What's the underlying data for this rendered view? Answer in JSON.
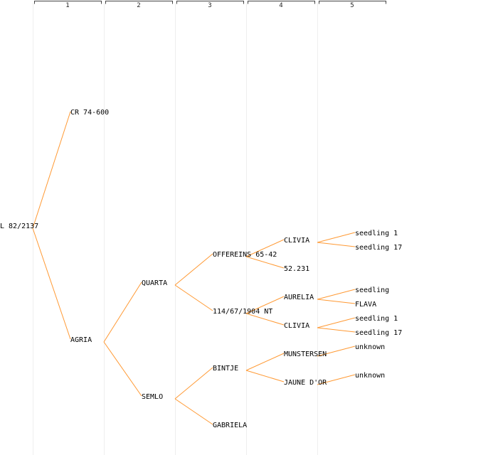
{
  "generations": [
    "1",
    "2",
    "3",
    "4",
    "5"
  ],
  "colors": {
    "edge": "#ff9933",
    "column": "#eeeeee",
    "bracket": "#444444",
    "text": "#000000"
  },
  "root": {
    "name": "L 82/2137",
    "children": [
      {
        "name": "CR 74-600",
        "children": []
      },
      {
        "name": "AGRIA",
        "children": [
          {
            "name": "QUARTA",
            "children": [
              {
                "name": "OFFEREINS 65-42",
                "children": [
                  {
                    "name": "CLIVIA",
                    "children": [
                      {
                        "name": "seedling 1",
                        "children": []
                      },
                      {
                        "name": "seedling 17",
                        "children": []
                      }
                    ]
                  },
                  {
                    "name": "52.231",
                    "children": []
                  }
                ]
              },
              {
                "name": "114/67/1904 NT",
                "children": [
                  {
                    "name": "AURELIA",
                    "children": [
                      {
                        "name": "seedling",
                        "children": []
                      },
                      {
                        "name": "FLAVA",
                        "children": []
                      }
                    ]
                  },
                  {
                    "name": "CLIVIA",
                    "children": [
                      {
                        "name": "seedling 1",
                        "children": []
                      },
                      {
                        "name": "seedling 17",
                        "children": []
                      }
                    ]
                  }
                ]
              }
            ]
          },
          {
            "name": "SEMLO",
            "children": [
              {
                "name": "BINTJE",
                "children": [
                  {
                    "name": "MUNSTERSEN",
                    "children": [
                      {
                        "name": "unknown",
                        "children": []
                      }
                    ]
                  },
                  {
                    "name": "JAUNE D'OR",
                    "children": [
                      {
                        "name": "unknown",
                        "children": []
                      }
                    ]
                  }
                ]
              },
              {
                "name": "GABRIELA",
                "children": []
              }
            ]
          }
        ]
      }
    ]
  }
}
